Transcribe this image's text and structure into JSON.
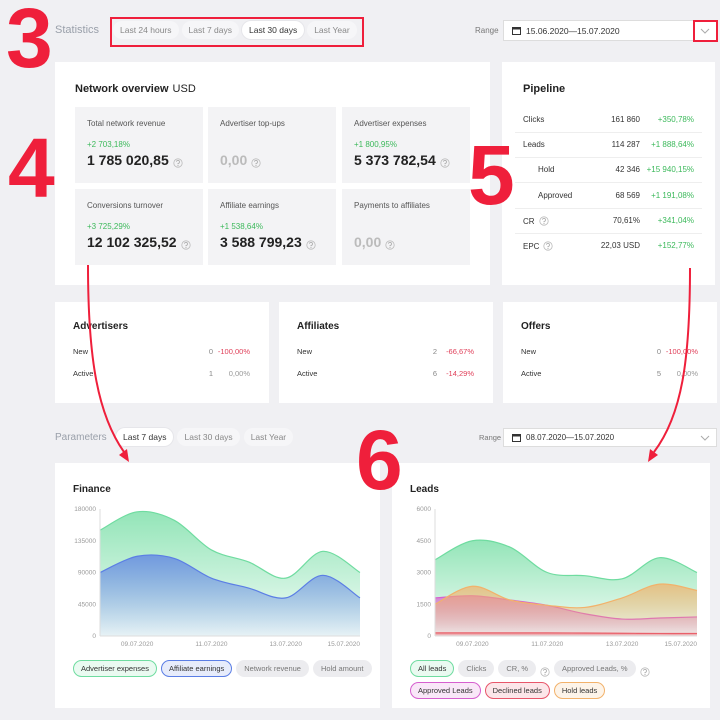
{
  "header": {
    "title": "Statistics",
    "tabs": [
      "Last 24 hours",
      "Last 7 days",
      "Last 30 days",
      "Last Year"
    ],
    "active_tab": 2,
    "range_label": "Range",
    "range": "15.06.2020—15.07.2020"
  },
  "annotations": [
    "3",
    "4",
    "5",
    "6"
  ],
  "network_overview": {
    "title": "Network overview",
    "currency": "USD",
    "tiles": [
      {
        "label": "Total network revenue",
        "change": "+2 703,18%",
        "value": "1 785 020,85"
      },
      {
        "label": "Advertiser top-ups",
        "value": "0,00"
      },
      {
        "label": "Advertiser expenses",
        "change": "+1 800,95%",
        "value": "5 373 782,54"
      },
      {
        "label": "Conversions turnover",
        "change": "+3 725,29%",
        "value": "12 102 325,52"
      },
      {
        "label": "Affiliate earnings",
        "change": "+1 538,64%",
        "value": "3 588 799,23"
      },
      {
        "label": "Payments to affiliates",
        "value": "0,00"
      }
    ]
  },
  "pipeline": {
    "title": "Pipeline",
    "rows": [
      {
        "label": "Clicks",
        "value": "161 860",
        "change": "+350,78%"
      },
      {
        "label": "Leads",
        "value": "114 287",
        "change": "+1 888,64%"
      },
      {
        "label": "Hold",
        "value": "42 346",
        "change": "+15 940,15%",
        "indent": true
      },
      {
        "label": "Approved",
        "value": "68 569",
        "change": "+1 191,08%",
        "indent": true
      },
      {
        "label": "CR",
        "value": "70,61%",
        "change": "+341,04%",
        "help": true
      },
      {
        "label": "EPC",
        "value": "22,03 USD",
        "change": "+152,77%",
        "help": true
      }
    ]
  },
  "counters": [
    {
      "title": "Advertisers",
      "rows": [
        {
          "label": "New",
          "value": "0",
          "change": "-100,00%"
        },
        {
          "label": "Active",
          "value": "1",
          "change": "0,00%"
        }
      ]
    },
    {
      "title": "Affiliates",
      "rows": [
        {
          "label": "New",
          "value": "2",
          "change": "-66,67%"
        },
        {
          "label": "Active",
          "value": "6",
          "change": "-14,29%"
        }
      ]
    },
    {
      "title": "Offers",
      "rows": [
        {
          "label": "New",
          "value": "0",
          "change": "-100,00%"
        },
        {
          "label": "Active",
          "value": "5",
          "change": "0,00%"
        }
      ]
    }
  ],
  "parameters": {
    "title": "Parameters",
    "tabs": [
      "Last 7 days",
      "Last 30 days",
      "Last Year"
    ],
    "active_tab": 0,
    "range_label": "Range",
    "range": "08.07.2020—15.07.2020"
  },
  "chart_data": [
    {
      "type": "area",
      "title": "Finance",
      "categories": [
        null,
        "09.07.2020",
        null,
        "11.07.2020",
        null,
        "13.07.2020",
        null,
        "15.07.2020"
      ],
      "ylim": [
        0,
        180000
      ],
      "yticks": [
        0,
        45000,
        90000,
        135000,
        180000
      ],
      "grid": false,
      "series": [
        {
          "name": "Advertiser expenses",
          "color": "#6fdca0",
          "values": [
            150000,
            176000,
            164000,
            122000,
            105000,
            82000,
            120000,
            90000
          ]
        },
        {
          "name": "Affiliate earnings",
          "color": "#5b7ee5",
          "values": [
            90000,
            113000,
            110000,
            82000,
            68000,
            54000,
            86000,
            54000
          ]
        },
        {
          "name": "Network revenue"
        },
        {
          "name": "Hold amount"
        }
      ]
    },
    {
      "type": "area",
      "title": "Leads",
      "categories": [
        null,
        "09.07.2020",
        null,
        "11.07.2020",
        null,
        "13.07.2020",
        null,
        "15.07.2020"
      ],
      "ylim": [
        0,
        6000
      ],
      "yticks": [
        0,
        1500,
        3000,
        4500,
        6000
      ],
      "grid": false,
      "series": [
        {
          "name": "All leads",
          "color": "#6fdca0",
          "values": [
            3600,
            4500,
            4200,
            3000,
            2850,
            2700,
            3700,
            3000
          ]
        },
        {
          "name": "Clicks"
        },
        {
          "name": "CR, %",
          "help": true
        },
        {
          "name": "Approved Leads, %",
          "help": true
        },
        {
          "name": "Approved Leads",
          "color": "#d65fcf",
          "values": [
            1800,
            1900,
            1700,
            1450,
            1050,
            800,
            850,
            900
          ]
        },
        {
          "name": "Declined leads",
          "color": "#e8566a",
          "values": [
            150,
            150,
            150,
            150,
            140,
            130,
            120,
            120
          ]
        },
        {
          "name": "Hold leads",
          "color": "#f2b26b",
          "values": [
            1500,
            2350,
            1700,
            1450,
            1350,
            1800,
            2450,
            2150
          ]
        }
      ]
    }
  ]
}
